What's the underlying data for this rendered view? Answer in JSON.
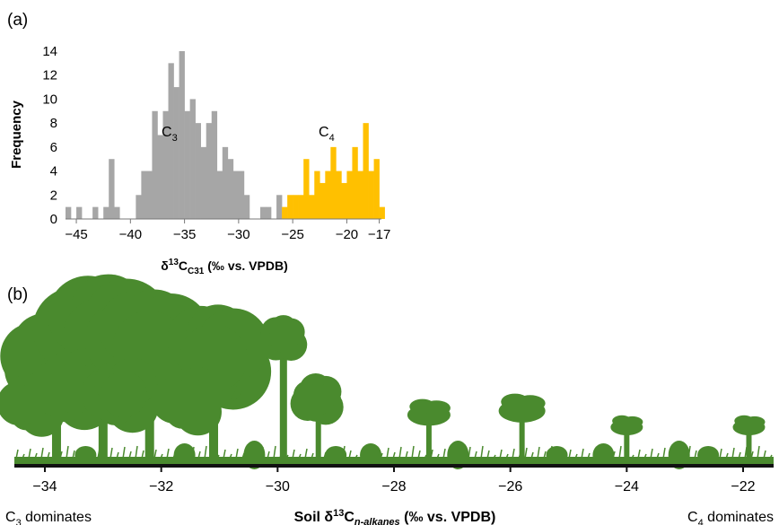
{
  "chart_data": [
    {
      "panel": "(a)",
      "type": "bar",
      "ylabel": "Frequency",
      "xlabel": {
        "main": "δ",
        "sup": "13",
        "mid": "C",
        "sub": "C31",
        "tail": " (‰ vs. VPDB)"
      },
      "ylim": [
        0,
        14
      ],
      "xlim": [
        -46,
        -16.8
      ],
      "yticks": [
        "0",
        "2",
        "4",
        "6",
        "8",
        "10",
        "12",
        "14"
      ],
      "xticks": [
        "−45",
        "−40",
        "−35",
        "−30",
        "−25",
        "−20",
        "−17"
      ],
      "xtick_values": [
        -45,
        -40,
        -35,
        -30,
        -25,
        -20,
        -17
      ],
      "bin_width": 0.5,
      "series": [
        {
          "name": "C3",
          "label_main": "C",
          "label_sub": "3",
          "color": "#a6a6a6",
          "bins": [
            [
              -46,
              1
            ],
            [
              -45.5,
              0
            ],
            [
              -45,
              1
            ],
            [
              -44.5,
              0
            ],
            [
              -44,
              0
            ],
            [
              -43.5,
              1
            ],
            [
              -43,
              0
            ],
            [
              -42.5,
              1
            ],
            [
              -42,
              5
            ],
            [
              -41.5,
              1
            ],
            [
              -41,
              0
            ],
            [
              -40.5,
              0
            ],
            [
              -40,
              0
            ],
            [
              -39.5,
              2
            ],
            [
              -39,
              4
            ],
            [
              -38.5,
              4
            ],
            [
              -38,
              9
            ],
            [
              -37.5,
              7
            ],
            [
              -37,
              9
            ],
            [
              -36.5,
              13
            ],
            [
              -36,
              11
            ],
            [
              -35.5,
              14
            ],
            [
              -35,
              9
            ],
            [
              -34.5,
              10
            ],
            [
              -34,
              8
            ],
            [
              -33.5,
              6
            ],
            [
              -33,
              8
            ],
            [
              -32.5,
              9
            ],
            [
              -32,
              4
            ],
            [
              -31.5,
              6
            ],
            [
              -31,
              5
            ],
            [
              -30.5,
              4
            ],
            [
              -30,
              4
            ],
            [
              -29.5,
              2
            ],
            [
              -29,
              0
            ],
            [
              -28.5,
              0
            ],
            [
              -28,
              1
            ],
            [
              -27.5,
              1
            ],
            [
              -27,
              0
            ],
            [
              -26.5,
              2
            ]
          ]
        },
        {
          "name": "C4",
          "label_main": "C",
          "label_sub": "4",
          "color": "#ffc000",
          "bins": [
            [
              -26,
              1
            ],
            [
              -25.5,
              2
            ],
            [
              -25,
              2
            ],
            [
              -24.5,
              2
            ],
            [
              -24,
              5
            ],
            [
              -23.5,
              2
            ],
            [
              -23,
              4
            ],
            [
              -22.5,
              3
            ],
            [
              -22,
              4
            ],
            [
              -21.5,
              6
            ],
            [
              -21,
              4
            ],
            [
              -20.5,
              3
            ],
            [
              -20,
              4
            ],
            [
              -19.5,
              6
            ],
            [
              -19,
              4
            ],
            [
              -18.5,
              8
            ],
            [
              -18,
              4
            ],
            [
              -17.5,
              5
            ],
            [
              -17,
              1
            ]
          ]
        }
      ]
    },
    {
      "panel": "(b)",
      "type": "illustration-axis",
      "xlim": [
        -34.5,
        -21.5
      ],
      "xticks": [
        "−34",
        "−32",
        "−30",
        "−28",
        "−26",
        "−24",
        "−22"
      ],
      "xtick_values": [
        -34,
        -32,
        -30,
        -28,
        -26,
        -24,
        -22
      ],
      "xlabel": {
        "main": "Soil δ",
        "sup": "13",
        "mid": "C",
        "sub": "n-alkanes",
        "tail": " (‰ vs. VPDB)"
      },
      "left_annotation": {
        "main": "C",
        "sub": "3",
        "tail": " dominates"
      },
      "right_annotation": {
        "main": "C",
        "sub": "4",
        "tail": " dominates"
      },
      "vegetation_color": "#4a8a2e",
      "trees": [
        {
          "x": -33.8,
          "size": 1.0,
          "kind": "broad"
        },
        {
          "x": -33.0,
          "size": 1.25,
          "kind": "broad"
        },
        {
          "x": -32.2,
          "size": 1.15,
          "kind": "broad"
        },
        {
          "x": -31.1,
          "size": 1.05,
          "kind": "broad"
        },
        {
          "x": -29.9,
          "size": 1.0,
          "kind": "palm"
        },
        {
          "x": -29.3,
          "size": 0.55,
          "kind": "sparse"
        },
        {
          "x": -27.4,
          "size": 0.6,
          "kind": "acacia"
        },
        {
          "x": -25.8,
          "size": 0.65,
          "kind": "acacia"
        },
        {
          "x": -24.0,
          "size": 0.45,
          "kind": "acacia"
        },
        {
          "x": -21.9,
          "size": 0.45,
          "kind": "acacia"
        }
      ]
    }
  ]
}
